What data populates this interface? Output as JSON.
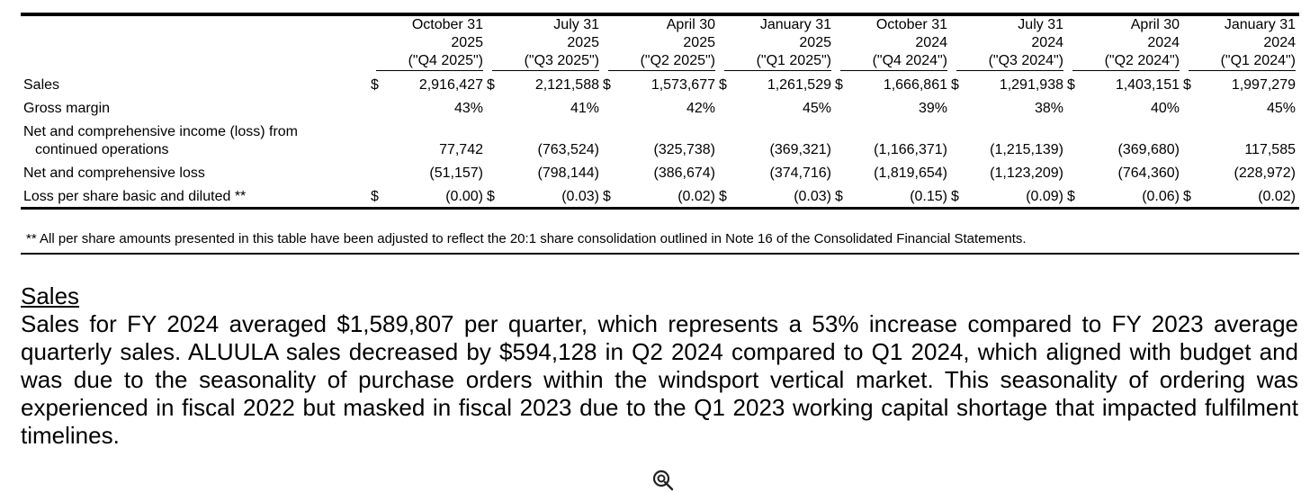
{
  "table": {
    "columns": [
      {
        "line1": "October 31",
        "line2": "2025",
        "line3": "(\"Q4 2025\")"
      },
      {
        "line1": "July 31",
        "line2": "2025",
        "line3": "(\"Q3 2025\")"
      },
      {
        "line1": "April 30",
        "line2": "2025",
        "line3": "(\"Q2 2025\")"
      },
      {
        "line1": "January 31",
        "line2": "2025",
        "line3": "(\"Q1 2025\")"
      },
      {
        "line1": "October 31",
        "line2": "2024",
        "line3": "(\"Q4 2024\")"
      },
      {
        "line1": "July 31",
        "line2": "2024",
        "line3": "(\"Q3 2024\")"
      },
      {
        "line1": "April 30",
        "line2": "2024",
        "line3": "(\"Q2 2024\")"
      },
      {
        "line1": "January 31",
        "line2": "2024",
        "line3": "(\"Q1 2024\")"
      }
    ],
    "rows": [
      {
        "label": "Sales",
        "currency": "$",
        "values": [
          "2,916,427",
          "2,121,588",
          "1,573,677",
          "1,261,529",
          "1,666,861",
          "1,291,938",
          "1,403,151",
          "1,997,279"
        ]
      },
      {
        "label": "Gross margin",
        "values": [
          "43%",
          "41%",
          "42%",
          "45%",
          "39%",
          "38%",
          "40%",
          "45%"
        ]
      },
      {
        "label_line1": "Net and comprehensive income (loss) from",
        "label_line2": "continued operations",
        "values": [
          "77,742",
          "(763,524)",
          "(325,738)",
          "(369,321)",
          "(1,166,371)",
          "(1,215,139)",
          "(369,680)",
          "117,585"
        ]
      },
      {
        "label": "Net and comprehensive loss",
        "values": [
          "(51,157)",
          "(798,144)",
          "(386,674)",
          "(374,716)",
          "(1,819,654)",
          "(1,123,209)",
          "(764,360)",
          "(228,972)"
        ]
      },
      {
        "label": "Loss per share basic and diluted **",
        "currency": "$",
        "values": [
          "(0.00)",
          "(0.03)",
          "(0.02)",
          "(0.03)",
          "(0.15)",
          "(0.09)",
          "(0.06)",
          "(0.02)"
        ]
      }
    ],
    "footnote": "** All per share amounts presented in this table have been adjusted to reflect the  20:1 share consolidation outlined in Note 16 of the Consolidated Financial Statements."
  },
  "section": {
    "title": "Sales",
    "body": "Sales for FY 2024 averaged $1,589,807 per quarter, which represents a 53% increase compared to FY 2023 average quarterly sales. ALUULA sales decreased by $594,128 in Q2 2024 compared to Q1 2024, which aligned with budget and was due to the seasonality of purchase orders within the windsport vertical market. This seasonality of ordering was experienced in fiscal 2022 but masked in fiscal 2023 due to the Q1 2023 working capital shortage that impacted fulfilment timelines."
  },
  "icons": {
    "watermark": "cursor-loop-icon"
  }
}
